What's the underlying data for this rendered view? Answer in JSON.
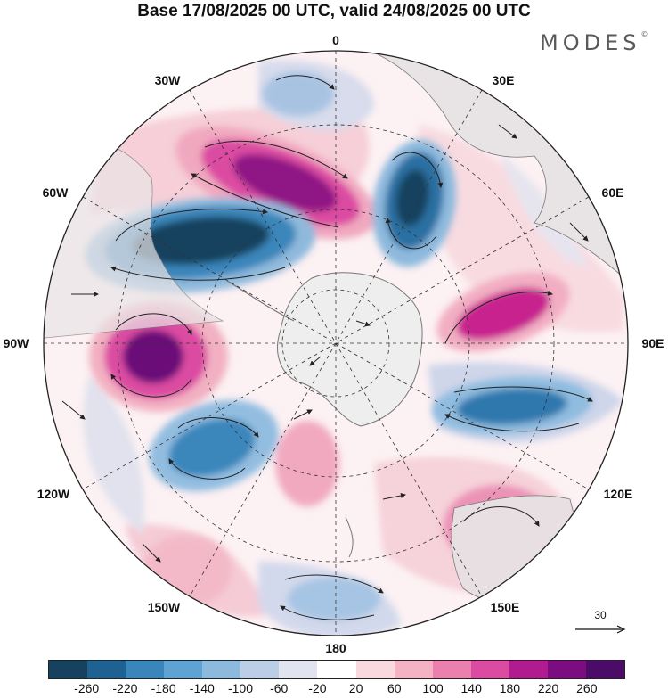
{
  "title": "Base 17/08/2025 00 UTC, valid 24/08/2025 00 UTC",
  "brand": "MODES",
  "brand_mark": "©",
  "longitude_labels": {
    "n0": "0",
    "e30": "30E",
    "e60": "60E",
    "e90": "90E",
    "e120": "120E",
    "e150": "150E",
    "s180": "180",
    "w150": "150W",
    "w120": "120W",
    "w90": "90W",
    "w60": "60W",
    "w30": "30W"
  },
  "reference_vector": {
    "label": "30",
    "icon": "right-arrow-icon"
  },
  "colorbar": {
    "ticks": [
      "-260",
      "-220",
      "-180",
      "-140",
      "-100",
      "-60",
      "-20",
      "20",
      "60",
      "100",
      "140",
      "180",
      "220",
      "260"
    ],
    "colors": [
      "#17425f",
      "#1f6190",
      "#3a86bb",
      "#5ea3d1",
      "#8db9dd",
      "#bccde6",
      "#e1e3ef",
      "#ffffff",
      "#f8d9de",
      "#f3b3c3",
      "#eb7fad",
      "#dc4ba2",
      "#b01c8f",
      "#7c0d80",
      "#4b0c68"
    ]
  },
  "map_colors": {
    "ocean_background": "#ffffff",
    "antarctica": "#eeeeee",
    "continents": "#e9e6e6",
    "coastline": "#777777"
  }
}
